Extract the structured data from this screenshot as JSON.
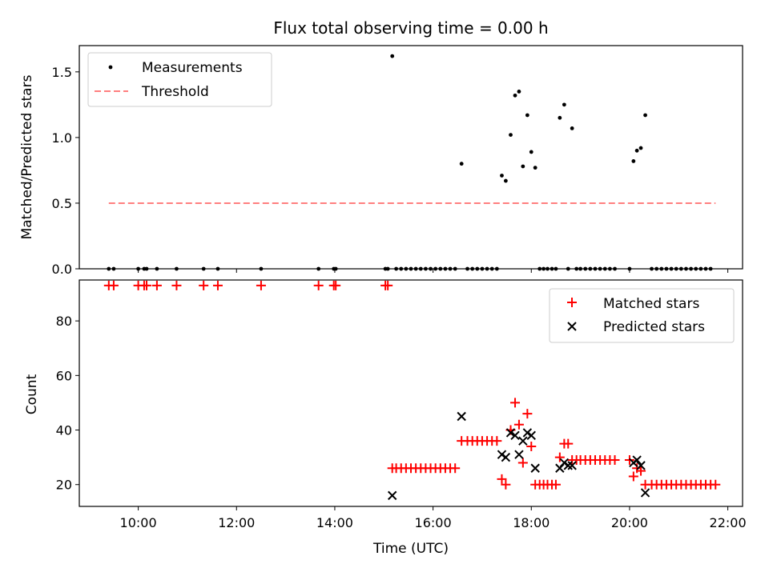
{
  "chart_data": [
    {
      "type": "scatter",
      "title": "Flux total observing time = 0.00 h",
      "xlabel": "",
      "ylabel": "Matched/Predicted stars",
      "xlim": [
        8.8,
        22.3
      ],
      "ylim": [
        0.0,
        1.7
      ],
      "yticks": [
        0.0,
        0.5,
        1.0,
        1.5
      ],
      "ytick_labels": [
        "0.0",
        "0.5",
        "1.0",
        "1.5"
      ],
      "legend": {
        "placement": "top-left",
        "entries": [
          "Measurements",
          "Threshold"
        ]
      },
      "grid": false,
      "series": [
        {
          "name": "Measurements",
          "marker": "dot",
          "color": "#000000",
          "points": [
            [
              9.4,
              0
            ],
            [
              9.5,
              0
            ],
            [
              10.0,
              0
            ],
            [
              10.12,
              0
            ],
            [
              10.17,
              0
            ],
            [
              10.38,
              0
            ],
            [
              10.78,
              0
            ],
            [
              11.33,
              0
            ],
            [
              11.62,
              0
            ],
            [
              12.5,
              0
            ],
            [
              13.67,
              0
            ],
            [
              13.98,
              0
            ],
            [
              14.02,
              0
            ],
            [
              15.03,
              0
            ],
            [
              15.08,
              0
            ],
            [
              15.17,
              1.62
            ],
            [
              15.25,
              0
            ],
            [
              15.35,
              0
            ],
            [
              15.45,
              0
            ],
            [
              15.55,
              0
            ],
            [
              15.65,
              0
            ],
            [
              15.75,
              0
            ],
            [
              15.85,
              0
            ],
            [
              15.95,
              0
            ],
            [
              16.05,
              0
            ],
            [
              16.15,
              0
            ],
            [
              16.25,
              0
            ],
            [
              16.35,
              0
            ],
            [
              16.45,
              0
            ],
            [
              16.58,
              0.8
            ],
            [
              16.7,
              0
            ],
            [
              16.8,
              0
            ],
            [
              16.9,
              0
            ],
            [
              17.0,
              0
            ],
            [
              17.1,
              0
            ],
            [
              17.2,
              0
            ],
            [
              17.3,
              0
            ],
            [
              17.4,
              0.71
            ],
            [
              17.48,
              0.67
            ],
            [
              17.58,
              1.02
            ],
            [
              17.67,
              1.32
            ],
            [
              17.75,
              1.35
            ],
            [
              17.83,
              0.78
            ],
            [
              17.92,
              1.17
            ],
            [
              18.0,
              0.89
            ],
            [
              18.08,
              0.77
            ],
            [
              18.17,
              0
            ],
            [
              18.25,
              0
            ],
            [
              18.33,
              0
            ],
            [
              18.42,
              0
            ],
            [
              18.5,
              0
            ],
            [
              18.58,
              1.15
            ],
            [
              18.67,
              1.25
            ],
            [
              18.75,
              0
            ],
            [
              18.83,
              1.07
            ],
            [
              18.92,
              0
            ],
            [
              19.0,
              0
            ],
            [
              19.1,
              0
            ],
            [
              19.2,
              0
            ],
            [
              19.3,
              0
            ],
            [
              19.4,
              0
            ],
            [
              19.5,
              0
            ],
            [
              19.6,
              0
            ],
            [
              19.7,
              0
            ],
            [
              20.0,
              0
            ],
            [
              20.08,
              0.82
            ],
            [
              20.15,
              0.9
            ],
            [
              20.23,
              0.92
            ],
            [
              20.32,
              1.17
            ],
            [
              20.45,
              0
            ],
            [
              20.55,
              0
            ],
            [
              20.65,
              0
            ],
            [
              20.75,
              0
            ],
            [
              20.85,
              0
            ],
            [
              20.95,
              0
            ],
            [
              21.05,
              0
            ],
            [
              21.15,
              0
            ],
            [
              21.25,
              0
            ],
            [
              21.35,
              0
            ],
            [
              21.45,
              0
            ],
            [
              21.55,
              0
            ],
            [
              21.65,
              0
            ]
          ]
        },
        {
          "name": "Threshold",
          "marker": "dashed-line",
          "color": "#ff7f7f",
          "points": [
            [
              9.4,
              0.5
            ],
            [
              21.75,
              0.5
            ]
          ]
        }
      ]
    },
    {
      "type": "scatter",
      "title": "",
      "xlabel": "Time (UTC)",
      "ylabel": "Count",
      "xlim": [
        8.8,
        22.3
      ],
      "ylim": [
        12,
        95
      ],
      "yticks": [
        20,
        40,
        60,
        80
      ],
      "ytick_labels": [
        "20",
        "40",
        "60",
        "80"
      ],
      "xticks": [
        10,
        12,
        14,
        16,
        18,
        20,
        22
      ],
      "xtick_labels": [
        "10:00",
        "12:00",
        "14:00",
        "16:00",
        "18:00",
        "20:00",
        "22:00"
      ],
      "legend": {
        "placement": "top-right",
        "entries": [
          "Matched stars",
          "Predicted stars"
        ]
      },
      "grid": false,
      "series": [
        {
          "name": "Matched stars",
          "marker": "plus",
          "color": "#ff0000",
          "points": [
            [
              9.4,
              93
            ],
            [
              9.5,
              93
            ],
            [
              10.0,
              93
            ],
            [
              10.12,
              93
            ],
            [
              10.17,
              93
            ],
            [
              10.38,
              93
            ],
            [
              10.78,
              93
            ],
            [
              11.33,
              93
            ],
            [
              11.62,
              93
            ],
            [
              12.5,
              93
            ],
            [
              13.67,
              93
            ],
            [
              13.98,
              93
            ],
            [
              14.02,
              93
            ],
            [
              15.03,
              93
            ],
            [
              15.08,
              93
            ],
            [
              15.17,
              26
            ],
            [
              15.25,
              26
            ],
            [
              15.35,
              26
            ],
            [
              15.45,
              26
            ],
            [
              15.55,
              26
            ],
            [
              15.65,
              26
            ],
            [
              15.75,
              26
            ],
            [
              15.85,
              26
            ],
            [
              15.95,
              26
            ],
            [
              16.05,
              26
            ],
            [
              16.15,
              26
            ],
            [
              16.25,
              26
            ],
            [
              16.35,
              26
            ],
            [
              16.45,
              26
            ],
            [
              16.58,
              36
            ],
            [
              16.7,
              36
            ],
            [
              16.8,
              36
            ],
            [
              16.9,
              36
            ],
            [
              17.0,
              36
            ],
            [
              17.1,
              36
            ],
            [
              17.2,
              36
            ],
            [
              17.3,
              36
            ],
            [
              17.4,
              22
            ],
            [
              17.48,
              20
            ],
            [
              17.58,
              40
            ],
            [
              17.67,
              50
            ],
            [
              17.75,
              42
            ],
            [
              17.83,
              28
            ],
            [
              17.92,
              46
            ],
            [
              18.0,
              34
            ],
            [
              18.08,
              20
            ],
            [
              18.17,
              20
            ],
            [
              18.25,
              20
            ],
            [
              18.33,
              20
            ],
            [
              18.42,
              20
            ],
            [
              18.5,
              20
            ],
            [
              18.58,
              30
            ],
            [
              18.67,
              35
            ],
            [
              18.75,
              35
            ],
            [
              18.83,
              29
            ],
            [
              18.92,
              29
            ],
            [
              19.0,
              29
            ],
            [
              19.1,
              29
            ],
            [
              19.2,
              29
            ],
            [
              19.3,
              29
            ],
            [
              19.4,
              29
            ],
            [
              19.5,
              29
            ],
            [
              19.6,
              29
            ],
            [
              19.7,
              29
            ],
            [
              20.0,
              29
            ],
            [
              20.08,
              23
            ],
            [
              20.15,
              26
            ],
            [
              20.23,
              25
            ],
            [
              20.32,
              20
            ],
            [
              20.45,
              20
            ],
            [
              20.55,
              20
            ],
            [
              20.65,
              20
            ],
            [
              20.75,
              20
            ],
            [
              20.85,
              20
            ],
            [
              20.95,
              20
            ],
            [
              21.05,
              20
            ],
            [
              21.15,
              20
            ],
            [
              21.25,
              20
            ],
            [
              21.35,
              20
            ],
            [
              21.45,
              20
            ],
            [
              21.55,
              20
            ],
            [
              21.65,
              20
            ],
            [
              21.75,
              20
            ]
          ]
        },
        {
          "name": "Predicted stars",
          "marker": "x",
          "color": "#000000",
          "points": [
            [
              15.17,
              16
            ],
            [
              16.58,
              45
            ],
            [
              17.4,
              31
            ],
            [
              17.48,
              30
            ],
            [
              17.58,
              39
            ],
            [
              17.67,
              38
            ],
            [
              17.75,
              31
            ],
            [
              17.83,
              36
            ],
            [
              17.92,
              39
            ],
            [
              18.0,
              38
            ],
            [
              18.08,
              26
            ],
            [
              18.58,
              26
            ],
            [
              18.67,
              28
            ],
            [
              18.75,
              27
            ],
            [
              18.83,
              27
            ],
            [
              20.08,
              28
            ],
            [
              20.15,
              29
            ],
            [
              20.23,
              27
            ],
            [
              20.32,
              17
            ]
          ]
        }
      ]
    }
  ]
}
